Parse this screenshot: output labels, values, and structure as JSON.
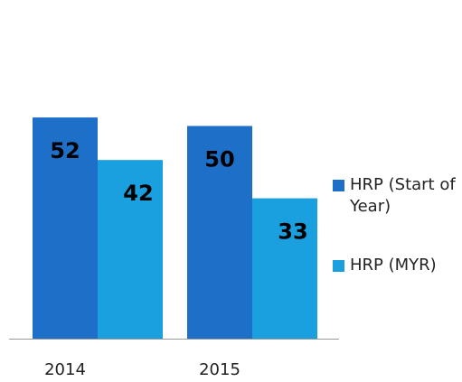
{
  "chart_data": {
    "type": "bar",
    "categories": [
      "2014",
      "2015"
    ],
    "series": [
      {
        "name": "HRP (Start of Year)",
        "color": "#1e6fc8",
        "values": [
          52,
          50
        ]
      },
      {
        "name": "HRP (MYR)",
        "color": "#1aa0de",
        "values": [
          42,
          33
        ]
      }
    ],
    "legend": "right"
  }
}
